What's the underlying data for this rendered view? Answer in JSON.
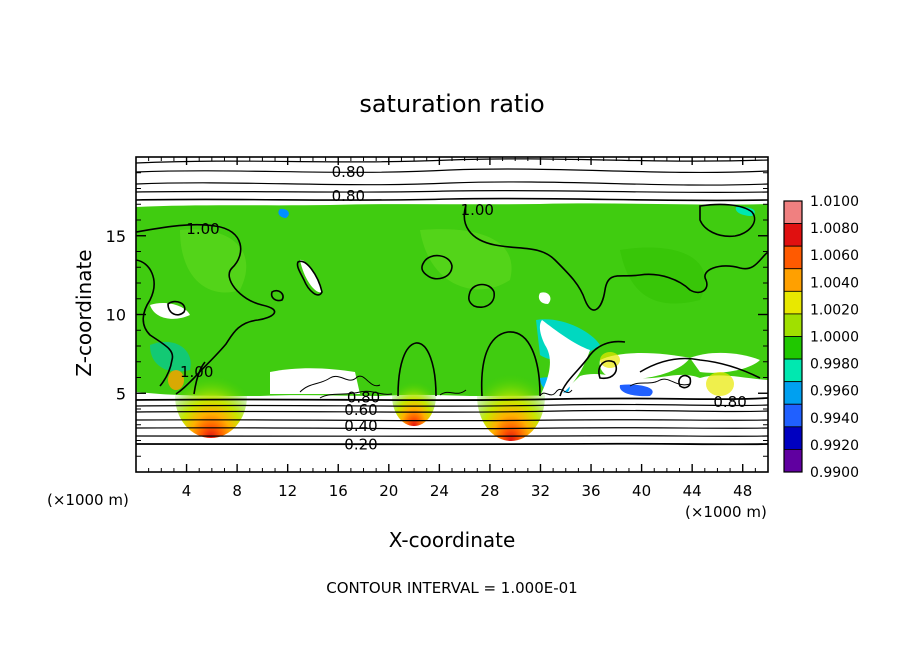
{
  "chart_data": {
    "type": "heatmap",
    "title": "saturation ratio",
    "xlabel": "X-coordinate",
    "ylabel": "Z-coordinate",
    "x_unit_left": "(×1000 m)",
    "x_unit_right": "(×1000 m)",
    "xlim": [
      0,
      50
    ],
    "ylim": [
      0,
      20
    ],
    "x_ticks": [
      4,
      8,
      12,
      16,
      20,
      24,
      28,
      32,
      36,
      40,
      44,
      48
    ],
    "y_ticks": [
      5,
      10,
      15
    ],
    "footer": "CONTOUR INTERVAL = 1.000E-01",
    "colorbar": {
      "labels": [
        "1.0100",
        "1.0080",
        "1.0060",
        "1.0040",
        "1.0020",
        "1.0000",
        "0.9980",
        "0.9960",
        "0.9940",
        "0.9920",
        "0.9900"
      ],
      "colors": [
        "#f08080",
        "#e01010",
        "#ff5a00",
        "#ffa000",
        "#e8e800",
        "#a0e000",
        "#20c800",
        "#00e8b0",
        "#00a0f0",
        "#2060ff",
        "#0000c0",
        "#6000a0"
      ]
    },
    "contour_labels": [
      {
        "text": "0.80",
        "x": 16.8,
        "z": 19.1
      },
      {
        "text": "0.80",
        "x": 16.8,
        "z": 17.6
      },
      {
        "text": "1.00",
        "x": 27.0,
        "z": 16.7
      },
      {
        "text": "1.00",
        "x": 5.3,
        "z": 15.5
      },
      {
        "text": "1.00",
        "x": 4.8,
        "z": 6.4
      },
      {
        "text": "0.80",
        "x": 18.0,
        "z": 4.8
      },
      {
        "text": "0.60",
        "x": 17.8,
        "z": 4.0
      },
      {
        "text": "0.40",
        "x": 17.8,
        "z": 3.0
      },
      {
        "text": "0.20",
        "x": 17.8,
        "z": 1.8
      },
      {
        "text": "0.80",
        "x": 47.0,
        "z": 4.5
      }
    ],
    "green_layer_z": [
      4.7,
      16.8
    ],
    "warm_cores_x": [
      5.8,
      21.8,
      29.5
    ],
    "grid": false
  }
}
